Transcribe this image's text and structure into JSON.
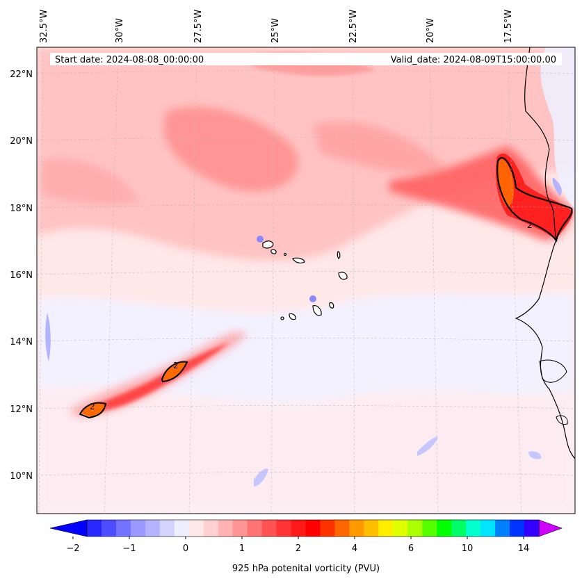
{
  "map": {
    "start_date_text": "Start date: 2024-08-08_00:00:00",
    "valid_date_text": "Valid_date: 2024-08-09T15:00:00.00",
    "variable": "925 hPa potenital vorticity (PVU)",
    "contour_label": "2",
    "lon_labels": [
      "32.5°W",
      "30°W",
      "27.5°W",
      "25°W",
      "22.5°W",
      "20°W",
      "17.5°W"
    ],
    "lat_labels": [
      "22°N",
      "20°N",
      "18°N",
      "16°N",
      "14°N",
      "12°N",
      "10°N"
    ]
  },
  "colorbar": {
    "ticks": [
      "−2",
      "−1",
      "0",
      "1",
      "2",
      "4",
      "6",
      "10",
      "14"
    ],
    "colors": [
      "#0000ff",
      "#2828ff",
      "#4d4dff",
      "#7373ff",
      "#9999ff",
      "#b3b3ff",
      "#d4d4ff",
      "#eeeeff",
      "#ffe8e8",
      "#ffd1d1",
      "#ffb3b3",
      "#ff9494",
      "#ff7575",
      "#ff5252",
      "#ff3333",
      "#ff1a1a",
      "#ff0000",
      "#ff3300",
      "#ff6600",
      "#ff9900",
      "#ffbf00",
      "#ffee00",
      "#ddff00",
      "#aaff00",
      "#55ff00",
      "#00ff00",
      "#00ff66",
      "#00ffcc",
      "#00e5ff",
      "#0080ff",
      "#0033ff",
      "#3300ff",
      "#9900ff"
    ]
  }
}
